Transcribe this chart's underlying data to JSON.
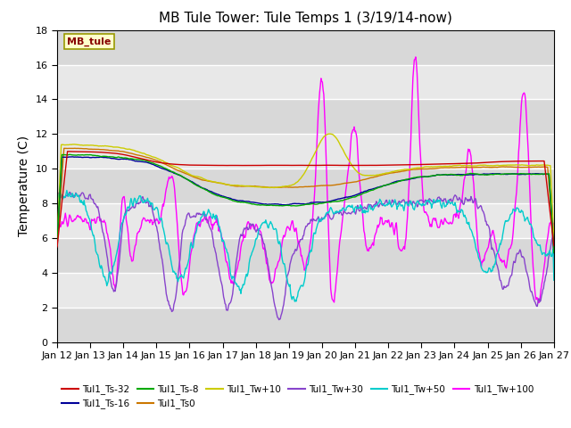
{
  "title": "MB Tule Tower: Tule Temps 1 (3/19/14-now)",
  "ylabel": "Temperature (C)",
  "ylim": [
    0,
    18
  ],
  "yticks": [
    0,
    2,
    4,
    6,
    8,
    10,
    12,
    14,
    16,
    18
  ],
  "x_tick_labels": [
    "Jan 12",
    "Jan 13",
    "Jan 14",
    "Jan 15",
    "Jan 16",
    "Jan 17",
    "Jan 18",
    "Jan 19",
    "Jan 20",
    "Jan 21",
    "Jan 22",
    "Jan 23",
    "Jan 24",
    "Jan 25",
    "Jan 26",
    "Jan 27"
  ],
  "bg_color": "#e0e0e0",
  "plot_bg": "#e8e8e8",
  "legend_box_text": "MB_tule",
  "legend_box_color": "#ffffcc",
  "legend_box_edge_color": "#999900",
  "legend_box_text_color": "#880000",
  "title_fontsize": 11,
  "axis_fontsize": 10,
  "tick_fontsize": 8,
  "series_colors": {
    "Tul1_Ts-32": "#cc0000",
    "Tul1_Ts-16": "#000099",
    "Tul1_Ts-8": "#00aa00",
    "Tul1_Ts0": "#cc7700",
    "Tul1_Tw+10": "#cccc00",
    "Tul1_Tw+30": "#8844cc",
    "Tul1_Tw+50": "#00cccc",
    "Tul1_Tw+100": "#ff00ff"
  },
  "legend_order": [
    "Tul1_Ts-32",
    "Tul1_Ts-16",
    "Tul1_Ts-8",
    "Tul1_Ts0",
    "Tul1_Tw+10",
    "Tul1_Tw+30",
    "Tul1_Tw+50",
    "Tul1_Tw+100"
  ]
}
